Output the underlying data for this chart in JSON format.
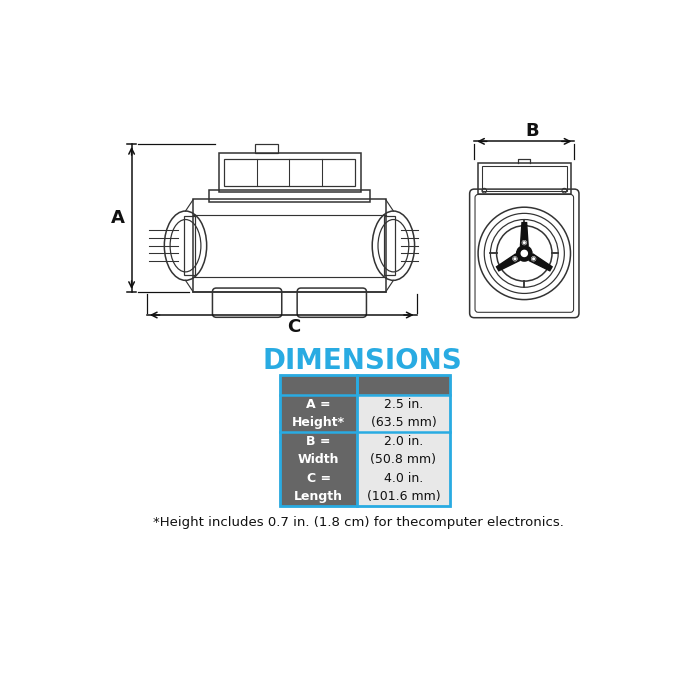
{
  "title": "DIMENSIONS",
  "title_color": "#29ABE2",
  "background_color": "#ffffff",
  "table": {
    "rows": [
      {
        "label": "A =\nHeight*",
        "value": "2.5 in.\n(63.5 mm)"
      },
      {
        "label": "B =\nWidth",
        "value": "2.0 in.\n(50.8 mm)"
      },
      {
        "label": "C =\nLength",
        "value": "4.0 in.\n(101.6 mm)"
      }
    ],
    "header_color": "#666666",
    "value_bg": "#e8e8e8",
    "border_color": "#29ABE2",
    "label_text_color": "#ffffff",
    "value_text_color": "#111111"
  },
  "footnote": "*Height includes 0.7 in. (1.8 cm) for thecomputer electronics.",
  "dim_line_color": "#111111",
  "drawing_line_color": "#333333",
  "lw": 1.1
}
